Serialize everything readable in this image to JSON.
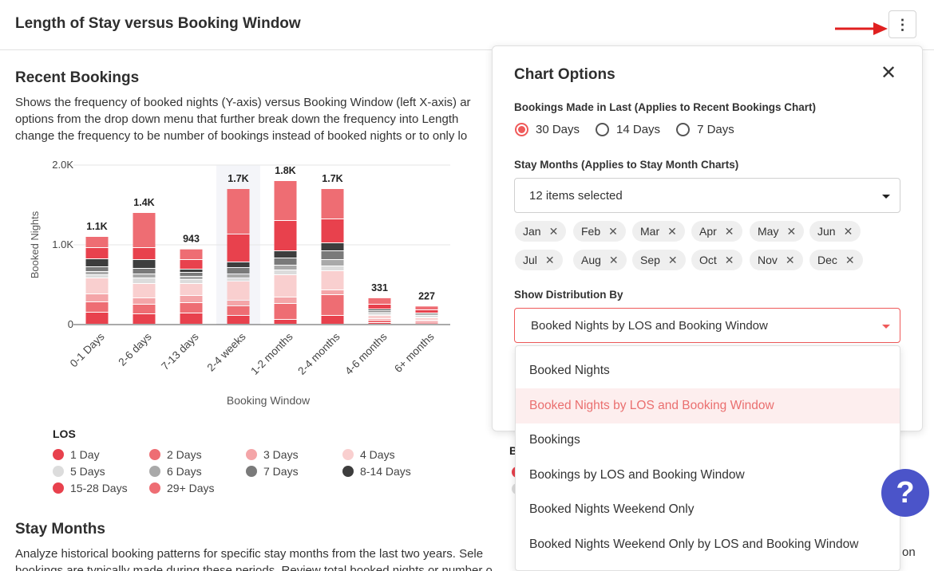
{
  "header": {
    "title": "Length of Stay versus Booking Window",
    "menu_glyph": "⋮"
  },
  "recent": {
    "title": "Recent Bookings",
    "desc_lines": [
      "Shows the frequency of booked nights (Y-axis) versus Booking Window (left X-axis) ar",
      "options from the drop down menu that further break down the frequency into Length",
      "change the frequency to be number of bookings instead of booked nights or to only lo"
    ]
  },
  "chart_data": {
    "type": "bar",
    "stacked": true,
    "xlabel": "Booking Window",
    "ylabel": "Booked Nights",
    "ylim": [
      0,
      2000
    ],
    "yticks": [
      {
        "value": 0,
        "label": "0"
      },
      {
        "value": 1000,
        "label": "1.0K"
      },
      {
        "value": 2000,
        "label": "2.0K"
      }
    ],
    "grid": true,
    "highlighted_category": "2-4 weeks",
    "categories": [
      "0-1 Days",
      "2-6 days",
      "7-13 days",
      "2-4 weeks",
      "1-2 months",
      "2-4 months",
      "4-6 months",
      "6+ months"
    ],
    "totals": [
      1100,
      1400,
      943,
      1700,
      1800,
      1700,
      331,
      227
    ],
    "total_labels": [
      "1.1K",
      "1.4K",
      "943",
      "1.7K",
      "1.8K",
      "1.7K",
      "331",
      "227"
    ],
    "series": [
      {
        "name": "1 Day",
        "color": "#e8414d",
        "values": [
          150,
          130,
          140,
          110,
          60,
          110,
          20,
          15
        ]
      },
      {
        "name": "2 Days",
        "color": "#ee6d73",
        "values": [
          130,
          120,
          130,
          120,
          200,
          260,
          30,
          20
        ]
      },
      {
        "name": "3 Days",
        "color": "#f4a5a8",
        "values": [
          100,
          80,
          90,
          70,
          80,
          60,
          20,
          15
        ]
      },
      {
        "name": "4 Days",
        "color": "#f9cfcf",
        "values": [
          200,
          180,
          150,
          240,
          280,
          240,
          40,
          30
        ]
      },
      {
        "name": "5 Days",
        "color": "#dcdcdc",
        "values": [
          40,
          70,
          50,
          40,
          60,
          60,
          20,
          15
        ]
      },
      {
        "name": "6 Days",
        "color": "#a9a9a9",
        "values": [
          40,
          50,
          40,
          50,
          60,
          80,
          20,
          15
        ]
      },
      {
        "name": "7 Days",
        "color": "#7a7a7a",
        "values": [
          60,
          70,
          50,
          80,
          90,
          110,
          20,
          15
        ]
      },
      {
        "name": "8-14 Days",
        "color": "#3d3d3d",
        "values": [
          100,
          110,
          40,
          70,
          90,
          100,
          20,
          15
        ]
      },
      {
        "name": "15-28 Days",
        "color": "#e8414d",
        "values": [
          140,
          150,
          120,
          350,
          380,
          300,
          60,
          40
        ]
      },
      {
        "name": "29+ Days",
        "color": "#ee6d73",
        "values": [
          140,
          440,
          133,
          570,
          500,
          380,
          81,
          47
        ]
      }
    ]
  },
  "legend": {
    "title": "LOS",
    "items": [
      {
        "label": "1 Day",
        "color": "#e8414d"
      },
      {
        "label": "2 Days",
        "color": "#ee6d73"
      },
      {
        "label": "3 Days",
        "color": "#f4a5a8"
      },
      {
        "label": "4 Days",
        "color": "#f9cfcf"
      },
      {
        "label": "5 Days",
        "color": "#dcdcdc"
      },
      {
        "label": "6 Days",
        "color": "#a9a9a9"
      },
      {
        "label": "7 Days",
        "color": "#7a7a7a"
      },
      {
        "label": "8-14 Days",
        "color": "#3d3d3d"
      },
      {
        "label": "15-28 Days",
        "color": "#e8414d"
      },
      {
        "label": "29+ Days",
        "color": "#ee6d73"
      }
    ]
  },
  "stay": {
    "title": "Stay Months",
    "desc_lines": [
      "Analyze historical booking patterns for specific stay months from the last two years. Sele",
      "bookings are typically made during these periods. Review total booked nights or number o"
    ],
    "peek_right": "on"
  },
  "behind_panel": {
    "legend_letter": "B"
  },
  "options": {
    "title": "Chart Options",
    "close_glyph": "✕",
    "bookings_label": "Bookings Made in Last (Applies to Recent Bookings Chart)",
    "radios": [
      {
        "label": "30 Days",
        "checked": true
      },
      {
        "label": "14 Days",
        "checked": false
      },
      {
        "label": "7 Days",
        "checked": false
      }
    ],
    "stay_months_label": "Stay Months (Applies to Stay Month Charts)",
    "stay_months_value": "12 items selected",
    "months": [
      "Jan",
      "Feb",
      "Mar",
      "Apr",
      "May",
      "Jun",
      "Jul",
      "Aug",
      "Sep",
      "Oct",
      "Nov",
      "Dec"
    ],
    "chip_remove_glyph": "✕",
    "distribution_label": "Show Distribution By",
    "distribution_value": "Booked Nights by LOS and Booking Window",
    "distribution_options": [
      "Booked Nights",
      "Booked Nights by LOS and Booking Window",
      "Bookings",
      "Bookings by LOS and Booking Window",
      "Booked Nights Weekend Only",
      "Booked Nights Weekend Only by LOS and Booking Window"
    ],
    "distribution_selected_index": 1
  },
  "help": {
    "glyph": "?"
  }
}
